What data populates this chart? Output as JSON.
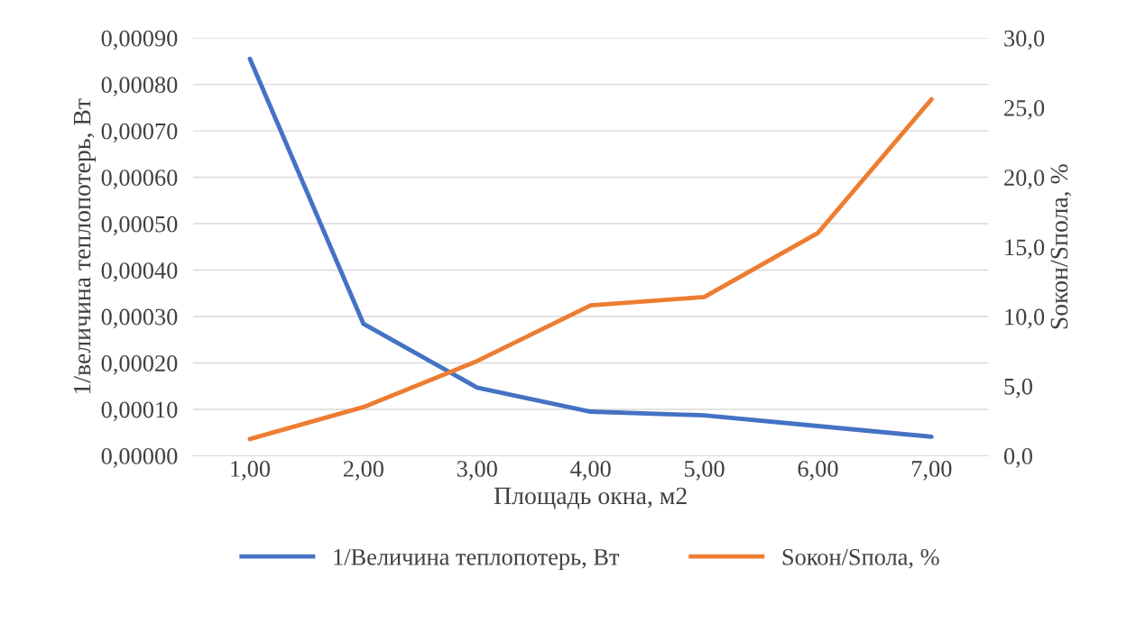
{
  "chart_data": {
    "type": "line",
    "xlabel": "Площадь окна, м2",
    "ylabel": "1/величина теплопотерь, Вт",
    "y2label": "Sокон/Sпола, %",
    "categories": [
      "1,00",
      "2,00",
      "3,00",
      "4,00",
      "5,00",
      "6,00",
      "7,00"
    ],
    "series": [
      {
        "name": "1/Величина теплопотерь, Вт",
        "color": "#4472c4",
        "values": [
          0.000855,
          0.000284,
          0.000147,
          9.5e-05,
          8.7e-05,
          6.4e-05,
          4.1e-05
        ]
      },
      {
        "name": "Sокон/Sпола, %",
        "color": "#ed7d31",
        "axis": "y2",
        "values": [
          1.2,
          3.5,
          6.8,
          10.8,
          11.4,
          16.0,
          25.6
        ]
      }
    ],
    "ylim": [
      0,
      0.0009
    ],
    "yticks": [
      {
        "value": 0,
        "label": "0,00000"
      },
      {
        "value": 0.0001,
        "label": "0,00010"
      },
      {
        "value": 0.0002,
        "label": "0,00020"
      },
      {
        "value": 0.0003,
        "label": "0,00030"
      },
      {
        "value": 0.0004,
        "label": "0,00040"
      },
      {
        "value": 0.0005,
        "label": "0,00050"
      },
      {
        "value": 0.0006,
        "label": "0,00060"
      },
      {
        "value": 0.0007,
        "label": "0,00070"
      },
      {
        "value": 0.0008,
        "label": "0,00080"
      },
      {
        "value": 0.0009,
        "label": "0,00090"
      }
    ],
    "y2lim": [
      0,
      30
    ],
    "y2ticks": [
      {
        "value": 0,
        "label": "0,0"
      },
      {
        "value": 5,
        "label": "5,0"
      },
      {
        "value": 10,
        "label": "10,0"
      },
      {
        "value": 15,
        "label": "15,0"
      },
      {
        "value": 20,
        "label": "20,0"
      },
      {
        "value": 25,
        "label": "25,0"
      },
      {
        "value": 30,
        "label": "30,0"
      }
    ],
    "grid": "y",
    "legend": "bottom",
    "marker": "none",
    "line_style": "solid"
  }
}
